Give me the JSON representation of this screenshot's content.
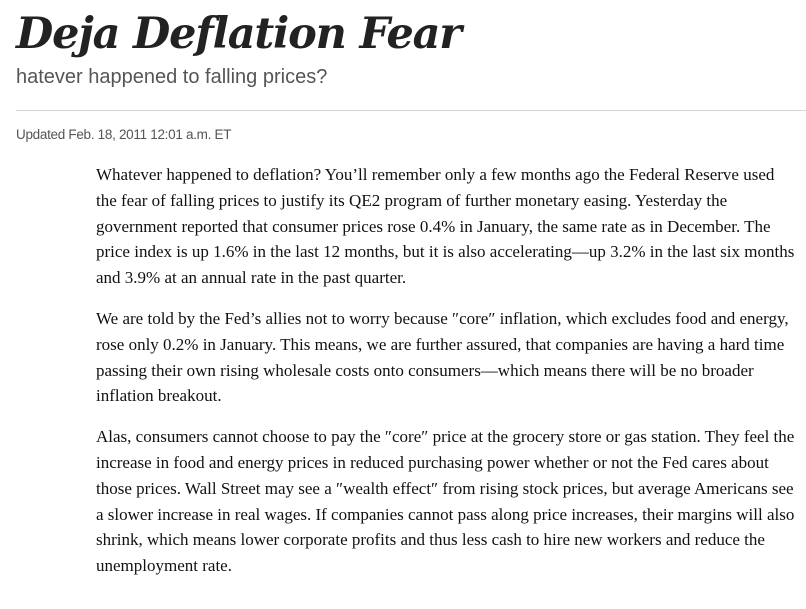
{
  "article": {
    "headline": "Deja Deflation Fear",
    "dek": "hatever happened to falling prices?",
    "dateline": "Updated Feb. 18, 2011 12:01 a.m. ET",
    "paragraphs": [
      "Whatever happened to deflation? You’ll remember only a few months ago the Federal Reserve used the fear of falling prices to justify its QE2 program of further monetary easing. Yesterday the government reported that consumer prices rose 0.4% in January, the same rate as in December. The price index is up 1.6% in the last 12 months, but it is also accelerating—up 3.2% in the last six months and 3.9% at an annual rate in the past quarter.",
      "We are told by the Fed’s allies not to worry because ″core″ inflation, which excludes food and energy, rose only 0.2% in January. This means, we are further assured, that companies are having a hard time passing their own rising wholesale costs onto consumers—which means there will be no broader inflation breakout.",
      "Alas, consumers cannot choose to pay the ″core″ price at the grocery store or gas station. They feel the increase in food and energy prices in reduced purchasing power whether or not the Fed cares about those prices. Wall Street may see a ″wealth effect″ from rising stock prices, but average Americans see a slower increase in real wages. If companies cannot pass along price increases, their margins will also shrink, which means lower corporate profits and thus less cash to hire new workers and reduce the unemployment rate."
    ]
  }
}
